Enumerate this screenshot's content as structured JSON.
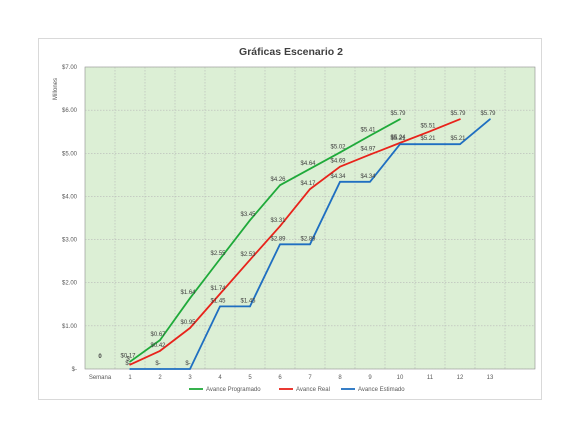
{
  "chart_data": {
    "type": "line",
    "title": "Gráficas Escenario 2",
    "ylabel": "Millones",
    "xlabel": "",
    "ylim": [
      0,
      7
    ],
    "y_tick_labels": [
      "$-",
      "$1.00",
      "$2.00",
      "$3.00",
      "$4.00",
      "$5.00",
      "$6.00",
      "$7.00"
    ],
    "x_axis_title_label": "Semana",
    "categories": [
      "1",
      "2",
      "3",
      "4",
      "5",
      "6",
      "7",
      "8",
      "9",
      "10",
      "11",
      "12",
      "13"
    ],
    "zero_label": "0",
    "plot_background": "#dcefd5",
    "grid": true,
    "legend_position": "bottom",
    "series": [
      {
        "name": "Avance Programado",
        "color": "#1faa3a",
        "x": [
          1,
          2,
          3,
          4,
          5,
          6,
          7,
          8,
          9,
          10
        ],
        "values": [
          0.17,
          0.67,
          1.64,
          2.55,
          3.45,
          4.26,
          4.64,
          5.02,
          5.41,
          5.79
        ],
        "labels": [
          "$0.17",
          "$0.67",
          "$1.64",
          "$2.55",
          "$3.45",
          "$4.26",
          "$4.64",
          "$5.02",
          "$5.41",
          "$5.79"
        ]
      },
      {
        "name": "Avance Real",
        "color": "#e8231b",
        "x": [
          1,
          2,
          3,
          4,
          5,
          6,
          7,
          8,
          9,
          10,
          11,
          12
        ],
        "values": [
          0.1,
          0.42,
          0.95,
          1.74,
          2.53,
          3.31,
          4.17,
          4.69,
          4.97,
          5.24,
          5.51,
          5.79
        ],
        "labels": [
          "$",
          "$0.42",
          "$0.95",
          "$1.74",
          "$2.53",
          "$3.31",
          "$4.17",
          "$4.69",
          "$4.97",
          "$5.24",
          "$5.51",
          "$5.79"
        ]
      },
      {
        "name": "Avance Estimado",
        "color": "#1f6fc1",
        "x": [
          1,
          2,
          3,
          4,
          5,
          6,
          7,
          8,
          9,
          10,
          11,
          12,
          13
        ],
        "values": [
          0,
          0,
          0,
          1.45,
          1.45,
          2.89,
          2.89,
          4.34,
          4.34,
          5.21,
          5.21,
          5.21,
          5.79
        ],
        "labels": [
          "$-",
          "$-",
          "$-",
          "$1.45",
          "$1.45",
          "$2.89",
          "$2.89",
          "$4.34",
          "$4.34",
          "$5.21",
          "$5.21",
          "$5.21",
          "$5.79"
        ]
      }
    ]
  }
}
